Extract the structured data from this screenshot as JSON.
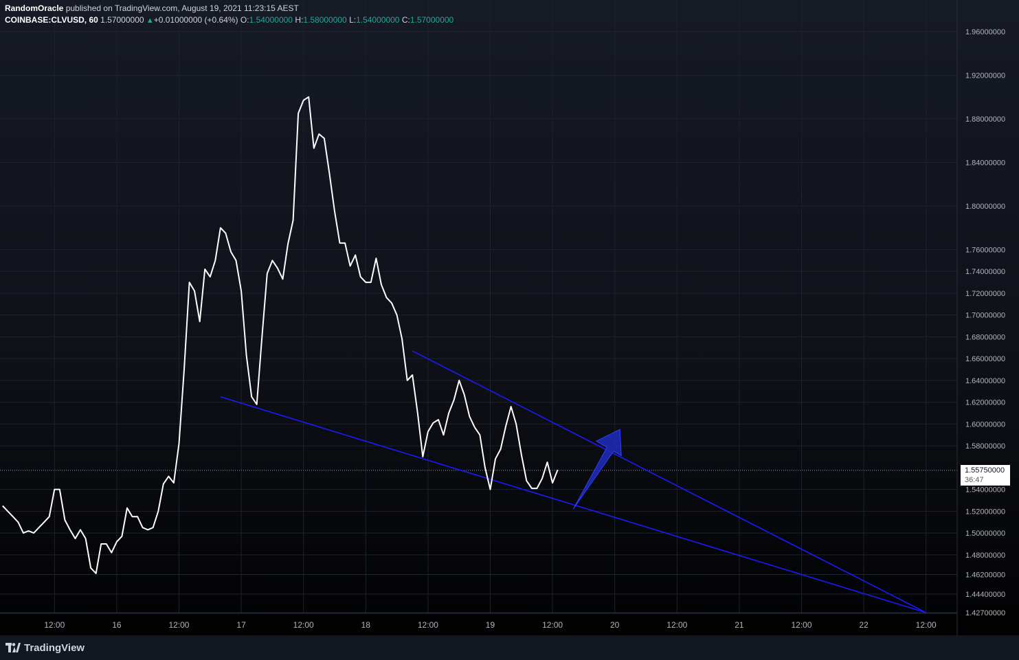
{
  "header": {
    "author": "RandomOracle",
    "published_text": "published on TradingView.com, August 19, 2021 11:23:15 AEST",
    "symbol": "COINBASE:CLVUSD, 60",
    "last": "1.57000000",
    "change": "+0.01000000 (+0.64%)",
    "o_label": "O:",
    "o_value": "1.54000000",
    "h_label": "H:",
    "h_value": "1.58000000",
    "l_label": "L:",
    "l_value": "1.54000000",
    "c_label": "C:",
    "c_value": "1.57000000"
  },
  "price_tag": {
    "price": "1.55750000",
    "countdown": "36:47"
  },
  "footer": {
    "brand": "TradingView"
  },
  "colors": {
    "background": "#131722",
    "price_line": "#ffffff",
    "trendline": "#1a1aff",
    "arrow": "#1f2bbd",
    "grid": "#1e222d",
    "axis_text": "#b2b5be",
    "positive": "#26a69a"
  },
  "chart_data": {
    "type": "line",
    "series_note": "",
    "y_ticks": [
      "1.96000000",
      "1.92000000",
      "1.88000000",
      "1.84000000",
      "1.80000000",
      "1.76000000",
      "1.74000000",
      "1.72000000",
      "1.70000000",
      "1.68000000",
      "1.66000000",
      "1.64000000",
      "1.62000000",
      "1.60000000",
      "1.58000000",
      "1.54000000",
      "1.52000000",
      "1.50000000",
      "1.48000000",
      "1.46200000",
      "1.44400000",
      "1.42700000"
    ],
    "x_ticks": [
      "12:00",
      "16",
      "12:00",
      "17",
      "12:00",
      "18",
      "12:00",
      "19",
      "12:00",
      "20",
      "12:00",
      "21",
      "12:00",
      "22",
      "12:00"
    ],
    "x_tick_hours": [
      -12,
      0,
      12,
      24,
      36,
      48,
      60,
      72,
      84,
      96,
      108,
      120,
      132,
      144,
      156
    ],
    "x_label_note": "hours relative to Aug 16 00:00 AEST",
    "current_price": 1.5575,
    "price": [
      [
        -22,
        1.525
      ],
      [
        -21,
        1.52
      ],
      [
        -20,
        1.515
      ],
      [
        -19,
        1.51
      ],
      [
        -18,
        1.5
      ],
      [
        -17,
        1.502
      ],
      [
        -16,
        1.5
      ],
      [
        -15,
        1.505
      ],
      [
        -14,
        1.51
      ],
      [
        -13,
        1.515
      ],
      [
        -12,
        1.54
      ],
      [
        -11,
        1.54
      ],
      [
        -10,
        1.512
      ],
      [
        -9,
        1.503
      ],
      [
        -8,
        1.495
      ],
      [
        -7,
        1.503
      ],
      [
        -6,
        1.495
      ],
      [
        -5,
        1.468
      ],
      [
        -4,
        1.463
      ],
      [
        -3,
        1.49
      ],
      [
        -2,
        1.49
      ],
      [
        -1,
        1.482
      ],
      [
        0,
        1.492
      ],
      [
        1,
        1.497
      ],
      [
        2,
        1.523
      ],
      [
        3,
        1.515
      ],
      [
        4,
        1.515
      ],
      [
        5,
        1.505
      ],
      [
        6,
        1.503
      ],
      [
        7,
        1.505
      ],
      [
        8,
        1.52
      ],
      [
        9,
        1.545
      ],
      [
        10,
        1.552
      ],
      [
        11,
        1.546
      ],
      [
        12,
        1.582
      ],
      [
        13,
        1.65
      ],
      [
        14,
        1.73
      ],
      [
        15,
        1.722
      ],
      [
        16,
        1.694
      ],
      [
        17,
        1.742
      ],
      [
        18,
        1.735
      ],
      [
        19,
        1.75
      ],
      [
        20,
        1.78
      ],
      [
        21,
        1.775
      ],
      [
        22,
        1.758
      ],
      [
        23,
        1.75
      ],
      [
        24,
        1.722
      ],
      [
        25,
        1.663
      ],
      [
        26,
        1.625
      ],
      [
        27,
        1.618
      ],
      [
        28,
        1.68
      ],
      [
        29,
        1.738
      ],
      [
        30,
        1.75
      ],
      [
        31,
        1.743
      ],
      [
        32,
        1.733
      ],
      [
        33,
        1.765
      ],
      [
        34,
        1.787
      ],
      [
        35,
        1.885
      ],
      [
        36,
        1.897
      ],
      [
        37,
        1.9
      ],
      [
        38,
        1.853
      ],
      [
        39,
        1.866
      ],
      [
        40,
        1.862
      ],
      [
        41,
        1.83
      ],
      [
        42,
        1.795
      ],
      [
        43,
        1.766
      ],
      [
        44,
        1.766
      ],
      [
        45,
        1.745
      ],
      [
        46,
        1.755
      ],
      [
        47,
        1.735
      ],
      [
        48,
        1.73
      ],
      [
        49,
        1.73
      ],
      [
        50,
        1.752
      ],
      [
        51,
        1.728
      ],
      [
        52,
        1.716
      ],
      [
        53,
        1.711
      ],
      [
        54,
        1.7
      ],
      [
        55,
        1.678
      ],
      [
        56,
        1.64
      ],
      [
        57,
        1.645
      ],
      [
        58,
        1.61
      ],
      [
        59,
        1.57
      ],
      [
        60,
        1.593
      ],
      [
        61,
        1.601
      ],
      [
        62,
        1.604
      ],
      [
        63,
        1.59
      ],
      [
        64,
        1.61
      ],
      [
        65,
        1.622
      ],
      [
        66,
        1.64
      ],
      [
        67,
        1.627
      ],
      [
        68,
        1.607
      ],
      [
        69,
        1.597
      ],
      [
        70,
        1.59
      ],
      [
        71,
        1.56
      ],
      [
        72,
        1.54
      ],
      [
        73,
        1.568
      ],
      [
        74,
        1.577
      ],
      [
        75,
        1.598
      ],
      [
        76,
        1.616
      ],
      [
        77,
        1.6
      ],
      [
        78,
        1.572
      ],
      [
        79,
        1.548
      ],
      [
        80,
        1.541
      ],
      [
        81,
        1.541
      ],
      [
        82,
        1.55
      ],
      [
        83,
        1.565
      ],
      [
        84,
        1.546
      ],
      [
        85,
        1.558
      ]
    ],
    "trendlines": [
      {
        "name": "upper",
        "from": [
          57,
          1.667
        ],
        "to": [
          156,
          1.427
        ]
      },
      {
        "name": "lower",
        "from": [
          20,
          1.625
        ],
        "to": [
          156,
          1.427
        ]
      }
    ],
    "arrow": {
      "from": [
        88,
        1.522
      ],
      "to": [
        97,
        1.595
      ]
    },
    "ylim": [
      1.427,
      1.96
    ],
    "xlim": [
      -22.5,
      162
    ]
  }
}
